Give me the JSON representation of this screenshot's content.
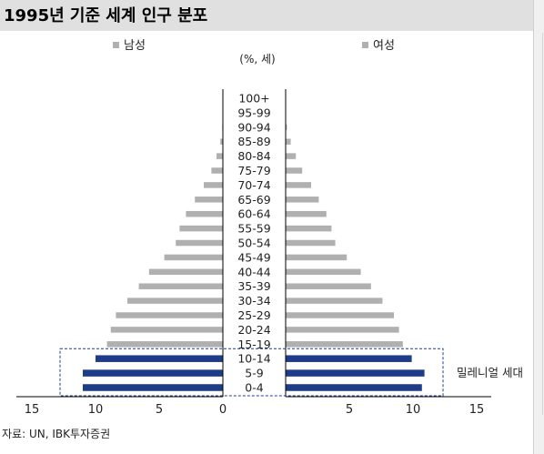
{
  "title": "1995년 기준 세계 인구 분포",
  "source": "자료: UN, IBK투자증권",
  "colors": {
    "bar": "#b0b0b0",
    "highlight": "#1f3c88",
    "axis": "#000000",
    "title_bg": "#e0e0e0"
  },
  "chart_data": {
    "type": "bar",
    "orientation": "horizontal",
    "unit_label": "(%, 세)",
    "categories": [
      "0-4",
      "5-9",
      "10-14",
      "15-19",
      "20-24",
      "25-29",
      "30-34",
      "35-39",
      "40-44",
      "45-49",
      "50-54",
      "55-59",
      "60-64",
      "65-69",
      "70-74",
      "75-79",
      "80-84",
      "85-89",
      "90-94",
      "95-99",
      "100+"
    ],
    "series": [
      {
        "name": "남성",
        "values": [
          11.0,
          11.0,
          10.0,
          9.1,
          8.8,
          8.4,
          7.5,
          6.6,
          5.8,
          4.6,
          3.7,
          3.4,
          2.9,
          2.2,
          1.5,
          0.9,
          0.5,
          0.2,
          0.05,
          0.0,
          0.0
        ]
      },
      {
        "name": "여성",
        "values": [
          10.7,
          10.9,
          9.9,
          9.2,
          8.9,
          8.5,
          7.6,
          6.7,
          5.9,
          4.8,
          3.9,
          3.6,
          3.2,
          2.6,
          2.0,
          1.3,
          0.8,
          0.4,
          0.1,
          0.0,
          0.0
        ]
      }
    ],
    "highlight_groups": [
      "0-4",
      "5-9",
      "10-14"
    ],
    "highlight_label": "밀레니얼 세대",
    "x_ticks": [
      "15",
      "10",
      "5",
      "0",
      "5",
      "10",
      "15"
    ],
    "xlim": [
      -15,
      15
    ]
  }
}
